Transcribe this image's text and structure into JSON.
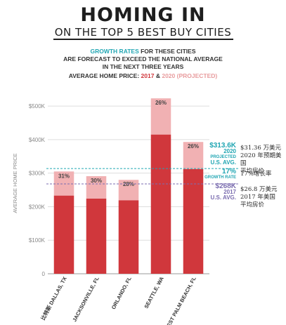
{
  "header": {
    "title": "HOMING IN",
    "subtitle": "ON THE TOP 5 BEST BUY CITIES",
    "note_line1_accent": "GROWTH RATES",
    "note_line1_rest": " FOR THESE CITIES",
    "note_line2_pre": "ARE FORECAST TO ",
    "note_line2_bold": "EXCEED THE NATIONAL AVERAGE",
    "note_line3_pre": "IN THE NEXT ",
    "note_line3_bold": "THREE YEARS",
    "legend_pre": "AVERAGE HOME PRICE: ",
    "legend_2017": "2017",
    "legend_amp": " & ",
    "legend_2020": "2020 (PROJECTED)"
  },
  "colors": {
    "bar_2017": "#d0373c",
    "bar_2020": "#f1b1b3",
    "accent": "#21a6b3",
    "avg_2017": "#7b6db0",
    "grid": "#dddddd"
  },
  "chart_data": {
    "type": "bar",
    "categories": [
      "比特斯 DALLAS, TX",
      "JACKSONVILLE, FL",
      "ORLANDO, FL",
      "SEATTLE, WA",
      "WEST PALM BEACH, FL"
    ],
    "series": [
      {
        "name": "2017",
        "values": [
          233,
          224,
          219,
          415,
          312
        ]
      },
      {
        "name": "2020 (PROJECTED)",
        "values": [
          305,
          291,
          280,
          523,
          393
        ]
      }
    ],
    "growth_labels": [
      "31%",
      "30%",
      "28%",
      "26%",
      "26%"
    ],
    "ylabel": "AVERAGE HOME PRICE",
    "yticks": [
      0,
      100,
      200,
      300,
      400,
      500
    ],
    "ytick_labels": [
      "0",
      "$100K",
      "$200K",
      "$300K",
      "$400K",
      "$500K"
    ],
    "ylim": [
      0,
      540
    ],
    "reference_lines": [
      {
        "value": 313.6,
        "label_value": "$313.6K",
        "label_lines": [
          "2020",
          "PROJECTED",
          "U.S. AVG."
        ]
      },
      {
        "value": 268,
        "label_value": "$268K",
        "label_lines": [
          "2017",
          "U.S. AVG."
        ]
      }
    ],
    "growth_rate": {
      "value": "17%",
      "label": "GROWTH RATE"
    }
  },
  "chinese_notes": {
    "note_2020": [
      "$31.36 万美元",
      "2020 年预期美国",
      "平均房价"
    ],
    "note_growth": "17%增长率",
    "note_2017": [
      "$26.8 万美元",
      "2017 年美国",
      "平均房价"
    ]
  }
}
